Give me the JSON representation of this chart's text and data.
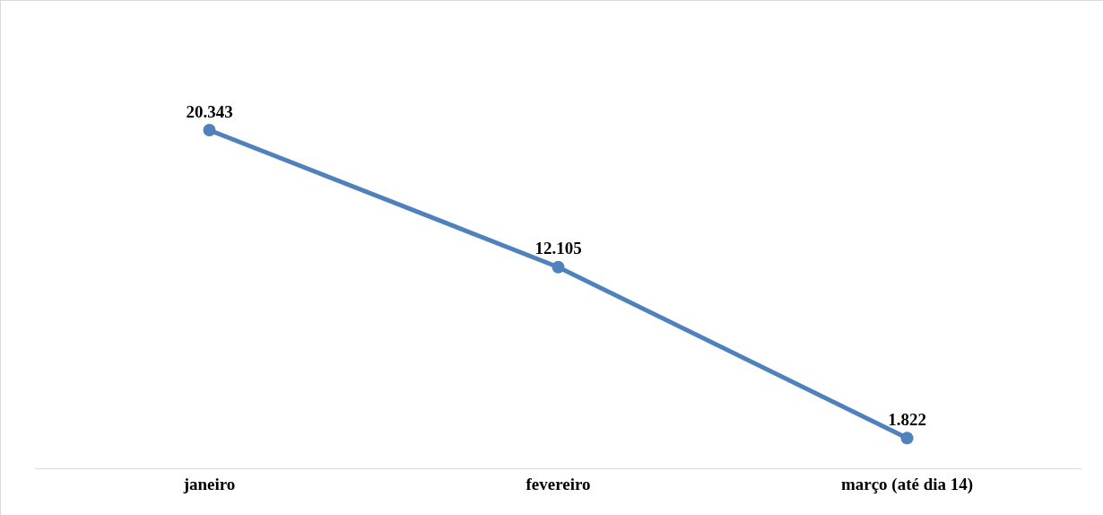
{
  "chart_data": {
    "type": "line",
    "categories": [
      "janeiro",
      "fevereiro",
      "março (até dia 14)"
    ],
    "series": [
      {
        "color": "#4f81bd",
        "values": [
          20343,
          12105,
          1822
        ],
        "value_labels": [
          "20.343",
          "12.105",
          "1.822"
        ]
      }
    ],
    "tick_labels": "x",
    "grid": false,
    "marker": "circle",
    "line_style": "solid"
  }
}
